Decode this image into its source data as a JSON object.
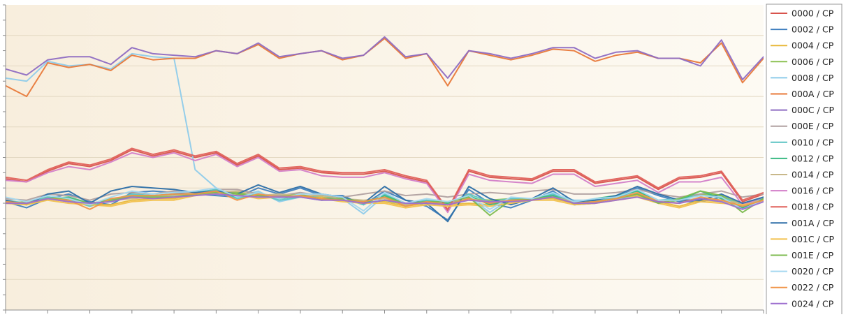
{
  "chart_data": {
    "type": "line",
    "title": "",
    "xlabel": "",
    "ylabel": "",
    "grid": true,
    "legend_position": "right",
    "x": [
      0,
      1,
      2,
      3,
      4,
      5,
      6,
      7,
      8,
      9,
      10,
      11,
      12,
      13,
      14,
      15,
      16,
      17,
      18,
      19,
      20,
      21,
      22,
      23,
      24,
      25,
      26,
      27,
      28,
      29,
      30,
      31,
      32,
      33,
      34,
      35,
      36
    ],
    "ylim": [
      0,
      20
    ],
    "background_colors": [
      "#f8eedd",
      "#fdfaf3"
    ],
    "series": [
      {
        "name": "0000 / CP",
        "color": "#d8534d",
        "values": [
          8.6,
          8.4,
          9.1,
          9.6,
          9.4,
          9.8,
          10.5,
          10.1,
          10.4,
          10.0,
          10.3,
          9.5,
          10.1,
          9.2,
          9.3,
          9.0,
          8.9,
          8.9,
          9.1,
          8.7,
          8.4,
          6.5,
          9.1,
          8.7,
          8.6,
          8.5,
          9.1,
          9.1,
          8.3,
          8.5,
          8.7,
          7.9,
          8.6,
          8.7,
          9.0,
          7.1,
          7.6
        ]
      },
      {
        "name": "0002 / CP",
        "color": "#3f7fbf",
        "values": [
          7.1,
          6.7,
          7.3,
          7.6,
          7.1,
          6.9,
          7.7,
          7.8,
          7.7,
          7.6,
          7.5,
          7.4,
          8.0,
          7.6,
          8.0,
          7.5,
          7.5,
          6.9,
          7.8,
          7.2,
          6.8,
          5.9,
          7.9,
          7.0,
          6.7,
          7.2,
          7.8,
          6.9,
          7.0,
          7.4,
          8.0,
          7.5,
          7.1,
          7.1,
          7.4,
          6.7,
          7.3
        ]
      },
      {
        "name": "0004 / CP",
        "color": "#e8b83a",
        "values": [
          7.1,
          7.0,
          7.3,
          7.1,
          6.9,
          6.9,
          7.2,
          7.3,
          7.3,
          7.6,
          7.8,
          7.7,
          7.4,
          7.5,
          7.5,
          7.4,
          7.2,
          7.1,
          7.1,
          6.8,
          7.0,
          6.9,
          7.0,
          6.9,
          7.1,
          7.3,
          7.3,
          7.0,
          7.1,
          7.3,
          7.5,
          7.1,
          6.8,
          7.2,
          7.1,
          7.0,
          7.2
        ]
      },
      {
        "name": "0006 / CP",
        "color": "#8cc152",
        "values": [
          7.0,
          7.1,
          7.4,
          7.2,
          6.9,
          7.3,
          7.4,
          7.4,
          7.5,
          7.6,
          7.8,
          7.7,
          7.5,
          7.4,
          7.5,
          7.3,
          7.3,
          7.0,
          7.2,
          6.9,
          7.1,
          7.0,
          7.3,
          7.2,
          7.3,
          7.3,
          7.5,
          7.1,
          7.2,
          7.4,
          7.6,
          7.0,
          7.2,
          7.6,
          7.5,
          6.9,
          7.4
        ]
      },
      {
        "name": "0008 / CP",
        "color": "#8ecbea",
        "values": [
          15.2,
          15.0,
          16.3,
          16.0,
          16.1,
          15.8,
          16.8,
          16.6,
          16.5,
          9.2,
          8.0,
          7.4,
          7.8,
          7.1,
          7.4,
          7.2,
          7.3,
          6.3,
          7.5,
          6.8,
          7.2,
          7.1,
          7.4,
          6.4,
          7.3,
          7.2,
          7.6,
          7.2,
          7.2,
          7.3,
          7.4,
          7.1,
          7.2,
          7.3,
          7.1,
          6.8,
          7.3
        ]
      },
      {
        "name": "000A / CP",
        "color": "#e8793a",
        "values": [
          14.7,
          14.0,
          16.2,
          15.9,
          16.1,
          15.7,
          16.7,
          16.4,
          16.5,
          16.5,
          17.0,
          16.8,
          17.4,
          16.5,
          16.8,
          17.0,
          16.4,
          16.7,
          17.8,
          16.5,
          16.8,
          14.7,
          17.0,
          16.7,
          16.4,
          16.7,
          17.1,
          17.0,
          16.3,
          16.7,
          16.9,
          16.5,
          16.5,
          16.2,
          17.5,
          14.9,
          16.5
        ]
      },
      {
        "name": "000C / CP",
        "color": "#8e6bc2",
        "values": [
          15.8,
          15.4,
          16.4,
          16.6,
          16.6,
          16.1,
          17.2,
          16.8,
          16.7,
          16.6,
          17.0,
          16.8,
          17.5,
          16.6,
          16.8,
          17.0,
          16.5,
          16.7,
          17.9,
          16.6,
          16.8,
          15.2,
          17.0,
          16.8,
          16.5,
          16.8,
          17.2,
          17.2,
          16.5,
          16.9,
          17.0,
          16.5,
          16.5,
          16.0,
          17.7,
          15.1,
          16.6
        ]
      },
      {
        "name": "000E / CP",
        "color": "#b0a0a0",
        "values": [
          7.3,
          7.2,
          7.6,
          7.5,
          7.2,
          7.6,
          7.7,
          7.6,
          7.8,
          7.6,
          7.9,
          7.9,
          7.6,
          7.5,
          7.7,
          7.5,
          7.4,
          7.6,
          7.8,
          7.5,
          7.6,
          7.4,
          7.6,
          7.7,
          7.6,
          7.8,
          7.9,
          7.6,
          7.6,
          7.7,
          7.9,
          7.6,
          7.4,
          7.6,
          7.8,
          7.4,
          7.6
        ]
      },
      {
        "name": "0010 / CP",
        "color": "#5cc4c4",
        "values": [
          7.2,
          7.0,
          7.4,
          7.2,
          6.8,
          7.2,
          7.6,
          7.5,
          7.5,
          7.7,
          7.9,
          7.3,
          7.6,
          7.2,
          7.4,
          7.5,
          7.3,
          6.9,
          7.6,
          7.0,
          7.2,
          7.0,
          7.6,
          7.1,
          7.3,
          7.3,
          7.6,
          7.0,
          7.1,
          7.4,
          7.8,
          7.2,
          7.3,
          7.5,
          7.4,
          6.9,
          7.4
        ]
      },
      {
        "name": "0012 / CP",
        "color": "#3aba82",
        "values": [
          7.1,
          6.9,
          7.3,
          7.4,
          7.0,
          7.1,
          7.5,
          7.5,
          7.6,
          7.5,
          7.8,
          7.4,
          7.7,
          7.3,
          7.5,
          7.3,
          7.4,
          7.0,
          7.5,
          7.0,
          7.1,
          7.0,
          7.5,
          6.9,
          7.2,
          7.3,
          7.5,
          7.0,
          7.3,
          7.5,
          7.8,
          7.1,
          7.2,
          7.8,
          7.3,
          6.7,
          7.3
        ]
      },
      {
        "name": "0014 / CP",
        "color": "#c8b88a",
        "values": [
          7.0,
          7.0,
          7.3,
          7.1,
          7.0,
          7.2,
          7.3,
          7.4,
          7.5,
          7.7,
          7.7,
          7.8,
          7.5,
          7.6,
          7.5,
          7.5,
          7.3,
          7.2,
          7.3,
          6.9,
          7.0,
          7.1,
          7.3,
          7.1,
          7.2,
          7.3,
          7.4,
          7.1,
          7.1,
          7.3,
          7.6,
          7.2,
          7.0,
          7.3,
          7.2,
          7.0,
          7.2
        ]
      },
      {
        "name": "0016 / CP",
        "color": "#d37ec8",
        "values": [
          8.5,
          8.4,
          9.0,
          9.4,
          9.2,
          9.7,
          10.3,
          10.0,
          10.3,
          9.8,
          10.2,
          9.4,
          10.0,
          9.1,
          9.2,
          8.8,
          8.7,
          8.7,
          9.0,
          8.6,
          8.3,
          6.4,
          8.9,
          8.5,
          8.4,
          8.3,
          8.9,
          8.9,
          8.1,
          8.3,
          8.5,
          7.7,
          8.4,
          8.4,
          8.7,
          6.9,
          7.4
        ]
      },
      {
        "name": "0018 / CP",
        "color": "#e0605a",
        "values": [
          8.7,
          8.5,
          9.2,
          9.7,
          9.5,
          9.9,
          10.6,
          10.2,
          10.5,
          10.1,
          10.4,
          9.6,
          10.2,
          9.3,
          9.4,
          9.1,
          9.0,
          9.0,
          9.2,
          8.8,
          8.5,
          6.6,
          9.2,
          8.8,
          8.7,
          8.6,
          9.2,
          9.2,
          8.4,
          8.6,
          8.8,
          8.0,
          8.7,
          8.8,
          9.1,
          7.2,
          7.7
        ]
      },
      {
        "name": "001A / CP",
        "color": "#2d6fa8",
        "values": [
          7.2,
          6.9,
          7.6,
          7.8,
          7.0,
          7.8,
          8.1,
          8.0,
          7.9,
          7.7,
          7.8,
          7.6,
          8.2,
          7.7,
          8.1,
          7.6,
          7.4,
          7.0,
          8.1,
          7.2,
          7.0,
          5.8,
          8.1,
          7.3,
          6.9,
          7.3,
          8.0,
          7.1,
          7.2,
          7.5,
          8.1,
          7.6,
          7.2,
          7.2,
          7.6,
          7.0,
          7.4
        ]
      },
      {
        "name": "001C / CP",
        "color": "#f2c14e",
        "values": [
          7.0,
          6.9,
          7.2,
          7.0,
          6.9,
          6.8,
          7.1,
          7.2,
          7.2,
          7.5,
          7.7,
          7.6,
          7.3,
          7.4,
          7.4,
          7.3,
          7.1,
          7.0,
          7.0,
          6.7,
          6.9,
          6.8,
          6.9,
          6.8,
          7.0,
          7.2,
          7.2,
          6.9,
          7.0,
          7.2,
          7.4,
          7.0,
          6.7,
          7.1,
          7.0,
          6.9,
          7.1
        ]
      },
      {
        "name": "001E / CP",
        "color": "#7dbb4f",
        "values": [
          7.1,
          7.0,
          7.3,
          7.3,
          7.0,
          7.2,
          7.4,
          7.4,
          7.4,
          7.6,
          7.7,
          7.6,
          7.5,
          7.4,
          7.6,
          7.2,
          7.3,
          7.1,
          7.4,
          7.0,
          7.1,
          7.1,
          7.4,
          6.2,
          7.2,
          7.3,
          7.4,
          7.0,
          7.1,
          7.3,
          7.6,
          7.0,
          7.3,
          7.8,
          7.5,
          6.4,
          7.3
        ]
      },
      {
        "name": "0020 / CP",
        "color": "#a5d8f0",
        "values": [
          7.4,
          7.1,
          7.5,
          7.3,
          6.9,
          7.4,
          7.8,
          7.6,
          7.7,
          7.8,
          8.0,
          7.4,
          7.7,
          7.3,
          7.6,
          7.6,
          7.4,
          6.5,
          7.7,
          7.0,
          7.3,
          7.1,
          7.5,
          6.6,
          7.4,
          7.3,
          7.7,
          7.1,
          7.3,
          7.4,
          7.9,
          7.2,
          7.2,
          7.5,
          7.4,
          6.6,
          7.2
        ]
      },
      {
        "name": "0022 / CP",
        "color": "#f0954a",
        "values": [
          7.1,
          7.0,
          7.3,
          7.2,
          6.6,
          7.3,
          7.5,
          7.5,
          7.6,
          7.6,
          7.8,
          7.2,
          7.6,
          7.4,
          7.5,
          7.3,
          7.2,
          7.1,
          7.4,
          6.8,
          7.1,
          6.9,
          7.3,
          7.0,
          7.2,
          7.2,
          7.4,
          7.0,
          7.1,
          7.3,
          7.7,
          7.1,
          7.0,
          7.4,
          7.2,
          6.8,
          7.2
        ]
      },
      {
        "name": "0024 / CP",
        "color": "#9d6fcf",
        "values": [
          7.0,
          7.0,
          7.3,
          7.1,
          7.0,
          7.1,
          7.4,
          7.3,
          7.4,
          7.5,
          7.6,
          7.5,
          7.4,
          7.4,
          7.4,
          7.2,
          7.2,
          7.0,
          7.2,
          7.0,
          7.0,
          6.9,
          7.2,
          7.1,
          7.1,
          7.2,
          7.4,
          7.0,
          7.0,
          7.2,
          7.4,
          7.1,
          7.0,
          7.3,
          7.1,
          6.6,
          7.1
        ]
      }
    ]
  }
}
